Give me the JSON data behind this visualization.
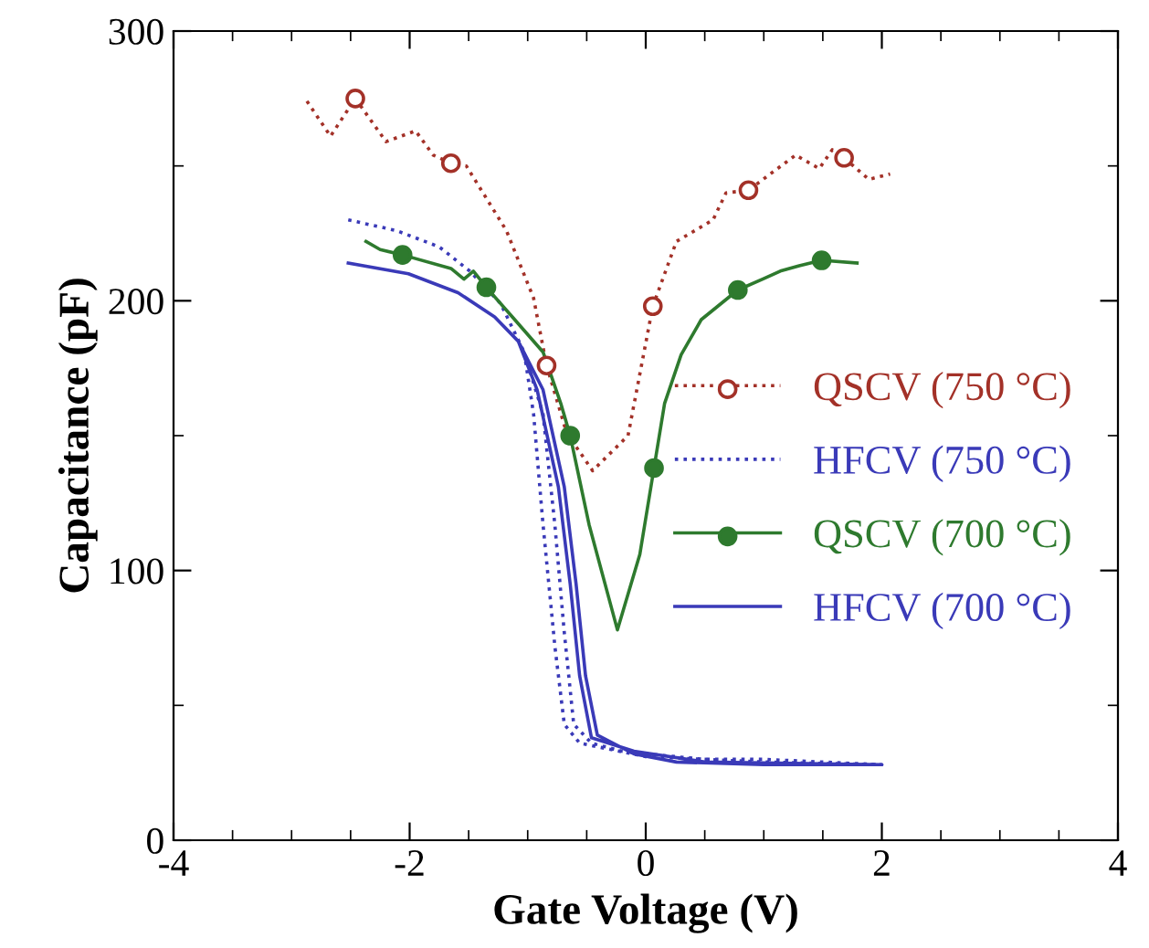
{
  "chart_data": {
    "type": "line",
    "xlabel": "Gate Voltage (V)",
    "ylabel": "Capacitance (pF)",
    "xlim": [
      -4,
      4
    ],
    "xticks": [
      -4,
      -2,
      0,
      2,
      4
    ],
    "ylim": [
      0,
      300
    ],
    "yticks": [
      0,
      100,
      200,
      300
    ],
    "grid": false,
    "legend": "right",
    "series": [
      {
        "name": "QSCV (750 °C)",
        "color": "#a33128",
        "line_style": "dotted",
        "marker": "none",
        "x": [
          -2.87,
          -2.67,
          -2.46,
          -2.2,
          -1.95,
          -1.8,
          -1.65,
          -1.52,
          -1.18,
          -0.95,
          -0.84,
          -0.67,
          -0.45,
          -0.15,
          0.06,
          0.26,
          0.57,
          0.68,
          0.87,
          1.27,
          1.47,
          1.58,
          1.68,
          1.89,
          2.07
        ],
        "values": [
          274,
          261,
          275,
          259,
          263,
          254,
          251,
          250,
          226,
          201,
          176,
          151,
          137,
          150,
          198,
          222,
          230,
          240,
          241,
          254,
          249,
          256,
          253,
          245,
          247
        ]
      },
      {
        "name": "HFCV (750 °C)",
        "color": "#3a3ab8",
        "line_style": "dotted",
        "marker": "none",
        "x": [
          -2.52,
          -2.11,
          -1.75,
          -1.49,
          -1.23,
          -1.03,
          -0.87,
          -0.77,
          -0.69,
          -0.61,
          -0.46,
          -0.2,
          0,
          0.5,
          1.0,
          1.5,
          2.0,
          1.0,
          0,
          -0.56,
          -0.69,
          -0.77,
          -0.87,
          -0.95,
          -1.03
        ],
        "values": [
          230,
          226,
          220,
          211,
          199,
          181,
          158,
          117,
          77,
          43,
          36,
          33,
          32,
          30,
          30,
          29,
          28,
          29,
          31,
          36,
          43,
          72,
          117,
          158,
          181
        ]
      },
      {
        "name": "QSCV (700 °C)",
        "color": "#2e7a2e",
        "line_style": "solid",
        "marker": "none",
        "x": [
          -2.37,
          -2.25,
          -2.06,
          -1.65,
          -1.54,
          -1.46,
          -1.35,
          -1.13,
          -0.87,
          -0.72,
          -0.64,
          -0.48,
          -0.24,
          -0.05,
          0.07,
          0.16,
          0.3,
          0.47,
          0.78,
          0.99,
          1.14,
          1.3,
          1.49,
          1.79
        ],
        "values": [
          222,
          219,
          217,
          212,
          208,
          211,
          205,
          194,
          181,
          162,
          150,
          117,
          78,
          106,
          138,
          162,
          180,
          193,
          204,
          208,
          211,
          213,
          215,
          214
        ]
      },
      {
        "name": "HFCV (700 °C)",
        "color": "#3a3ab8",
        "line_style": "solid",
        "marker": "none",
        "x": [
          -2.52,
          -2.01,
          -1.59,
          -1.28,
          -1.08,
          -0.87,
          -0.69,
          -0.59,
          -0.51,
          -0.41,
          -0.1,
          0.26,
          1.0,
          2.0,
          0.5,
          -0.1,
          -0.46,
          -0.56,
          -0.64,
          -0.74,
          -0.92,
          -1.08
        ],
        "values": [
          214,
          210,
          203,
          194,
          185,
          167,
          131,
          95,
          61,
          39,
          32,
          29,
          28,
          28,
          29,
          33,
          38,
          61,
          95,
          131,
          167,
          185
        ]
      },
      {
        "type": "scatter",
        "color": "#a33128",
        "marker": "circle",
        "x": [
          -2.46,
          -1.65,
          -0.84,
          0.06,
          0.87,
          1.68
        ],
        "values": [
          275,
          251,
          176,
          198,
          241,
          253
        ]
      },
      {
        "type": "scatter",
        "color": "#2e7a2e",
        "marker": "circle",
        "x": [
          -2.06,
          -1.35,
          -0.64,
          0.07,
          0.78,
          1.49
        ],
        "values": [
          217,
          205,
          150,
          138,
          204,
          215
        ]
      }
    ]
  }
}
